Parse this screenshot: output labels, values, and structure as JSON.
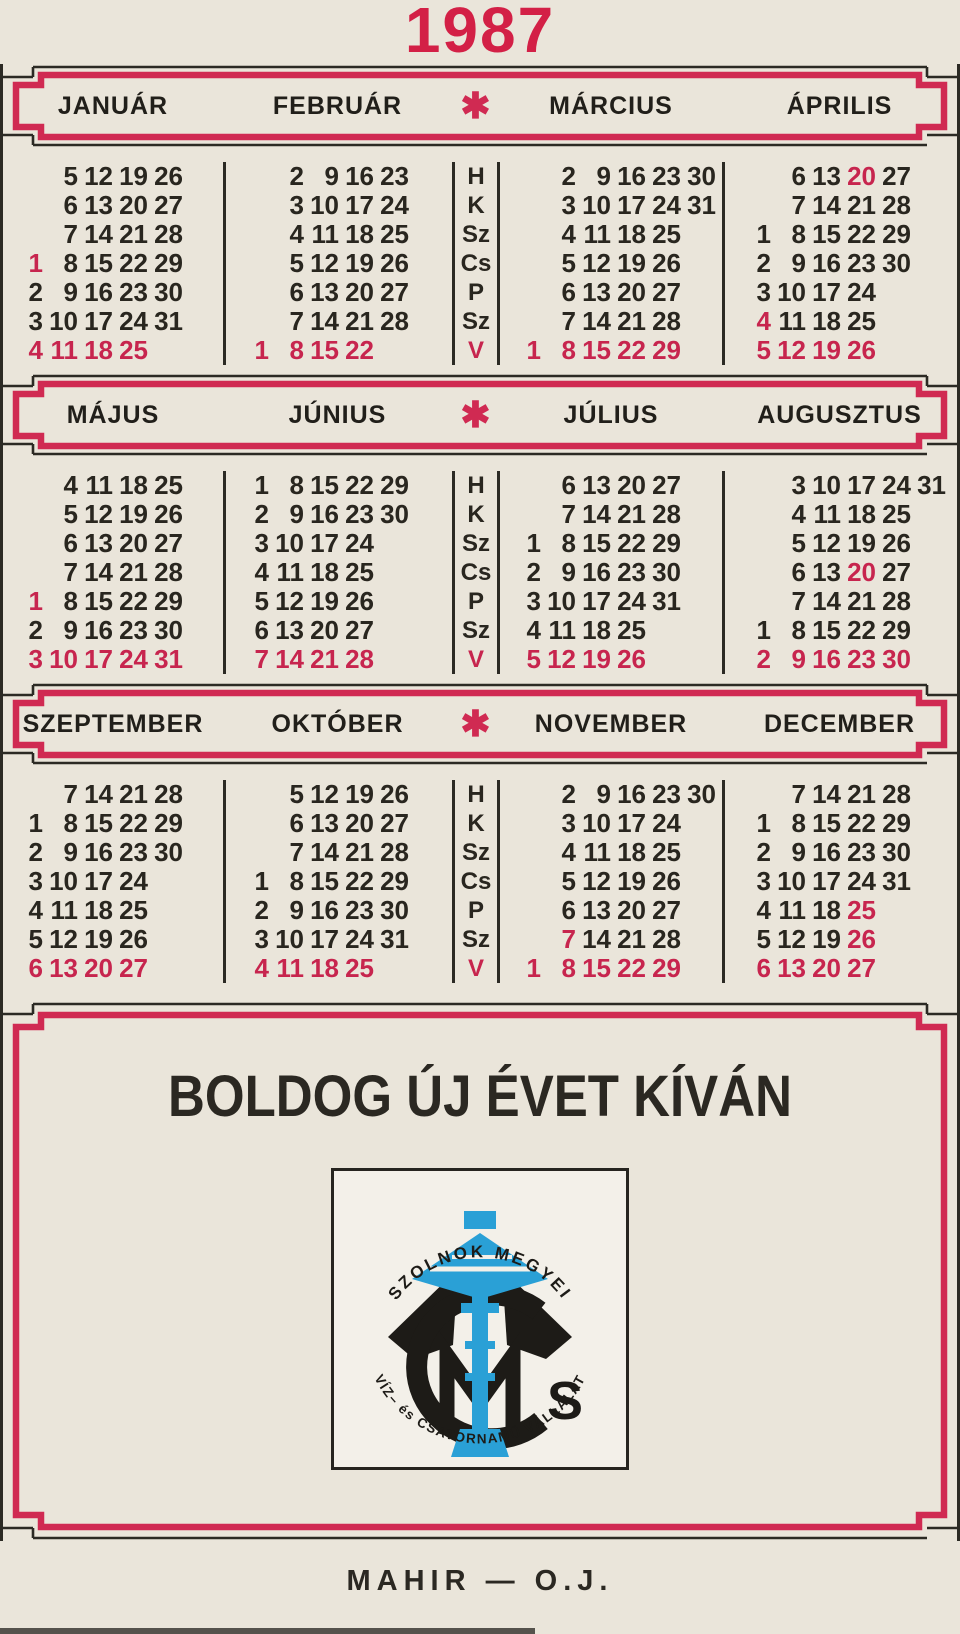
{
  "year_title": "1987",
  "star_separator": "✱",
  "weekday_letters": [
    "H",
    "K",
    "Sz",
    "Cs",
    "P",
    "Sz",
    "V"
  ],
  "colors": {
    "accent_red": "#c7254e",
    "frame_red": "#d02a52",
    "ink": "#29261f",
    "background": "#eae5da",
    "logo_blue": "#2aa0d6"
  },
  "sections": [
    {
      "months": [
        {
          "name": "JANUÁR",
          "red_days": [
            1
          ],
          "rows": [
            [
              "",
              "5",
              "12",
              "19",
              "26",
              ""
            ],
            [
              "",
              "6",
              "13",
              "20",
              "27",
              ""
            ],
            [
              "",
              "7",
              "14",
              "21",
              "28",
              ""
            ],
            [
              "1",
              "8",
              "15",
              "22",
              "29",
              ""
            ],
            [
              "2",
              "9",
              "16",
              "23",
              "30",
              ""
            ],
            [
              "3",
              "10",
              "17",
              "24",
              "31",
              ""
            ],
            [
              "4",
              "11",
              "18",
              "25",
              "",
              ""
            ]
          ]
        },
        {
          "name": "FEBRUÁR",
          "red_days": [],
          "rows": [
            [
              "",
              "2",
              "9",
              "16",
              "23",
              ""
            ],
            [
              "",
              "3",
              "10",
              "17",
              "24",
              ""
            ],
            [
              "",
              "4",
              "11",
              "18",
              "25",
              ""
            ],
            [
              "",
              "5",
              "12",
              "19",
              "26",
              ""
            ],
            [
              "",
              "6",
              "13",
              "20",
              "27",
              ""
            ],
            [
              "",
              "7",
              "14",
              "21",
              "28",
              ""
            ],
            [
              "1",
              "8",
              "15",
              "22",
              "",
              ""
            ]
          ]
        },
        {
          "name": "MÁRCIUS",
          "red_days": [],
          "rows": [
            [
              "",
              "2",
              "9",
              "16",
              "23",
              "30"
            ],
            [
              "",
              "3",
              "10",
              "17",
              "24",
              "31"
            ],
            [
              "",
              "4",
              "11",
              "18",
              "25",
              ""
            ],
            [
              "",
              "5",
              "12",
              "19",
              "26",
              ""
            ],
            [
              "",
              "6",
              "13",
              "20",
              "27",
              ""
            ],
            [
              "",
              "7",
              "14",
              "21",
              "28",
              ""
            ],
            [
              "1",
              "8",
              "15",
              "22",
              "29",
              ""
            ]
          ]
        },
        {
          "name": "ÁPRILIS",
          "red_days": [
            4,
            20
          ],
          "rows": [
            [
              "",
              "6",
              "13",
              "20",
              "27",
              ""
            ],
            [
              "",
              "7",
              "14",
              "21",
              "28",
              ""
            ],
            [
              "1",
              "8",
              "15",
              "22",
              "29",
              ""
            ],
            [
              "2",
              "9",
              "16",
              "23",
              "30",
              ""
            ],
            [
              "3",
              "10",
              "17",
              "24",
              "",
              ""
            ],
            [
              "4",
              "11",
              "18",
              "25",
              "",
              ""
            ],
            [
              "5",
              "12",
              "19",
              "26",
              "",
              ""
            ]
          ]
        }
      ]
    },
    {
      "months": [
        {
          "name": "MÁJUS",
          "red_days": [
            1
          ],
          "rows": [
            [
              "",
              "4",
              "11",
              "18",
              "25",
              ""
            ],
            [
              "",
              "5",
              "12",
              "19",
              "26",
              ""
            ],
            [
              "",
              "6",
              "13",
              "20",
              "27",
              ""
            ],
            [
              "",
              "7",
              "14",
              "21",
              "28",
              ""
            ],
            [
              "1",
              "8",
              "15",
              "22",
              "29",
              ""
            ],
            [
              "2",
              "9",
              "16",
              "23",
              "30",
              ""
            ],
            [
              "3",
              "10",
              "17",
              "24",
              "31",
              ""
            ]
          ]
        },
        {
          "name": "JÚNIUS",
          "red_days": [],
          "rows": [
            [
              "1",
              "8",
              "15",
              "22",
              "29",
              ""
            ],
            [
              "2",
              "9",
              "16",
              "23",
              "30",
              ""
            ],
            [
              "3",
              "10",
              "17",
              "24",
              "",
              ""
            ],
            [
              "4",
              "11",
              "18",
              "25",
              "",
              ""
            ],
            [
              "5",
              "12",
              "19",
              "26",
              "",
              ""
            ],
            [
              "6",
              "13",
              "20",
              "27",
              "",
              ""
            ],
            [
              "7",
              "14",
              "21",
              "28",
              "",
              ""
            ]
          ]
        },
        {
          "name": "JÚLIUS",
          "red_days": [],
          "rows": [
            [
              "",
              "6",
              "13",
              "20",
              "27",
              ""
            ],
            [
              "",
              "7",
              "14",
              "21",
              "28",
              ""
            ],
            [
              "1",
              "8",
              "15",
              "22",
              "29",
              ""
            ],
            [
              "2",
              "9",
              "16",
              "23",
              "30",
              ""
            ],
            [
              "3",
              "10",
              "17",
              "24",
              "31",
              ""
            ],
            [
              "4",
              "11",
              "18",
              "25",
              "",
              ""
            ],
            [
              "5",
              "12",
              "19",
              "26",
              "",
              ""
            ]
          ]
        },
        {
          "name": "AUGUSZTUS",
          "red_days": [
            20
          ],
          "rows": [
            [
              "",
              "3",
              "10",
              "17",
              "24",
              "31"
            ],
            [
              "",
              "4",
              "11",
              "18",
              "25",
              ""
            ],
            [
              "",
              "5",
              "12",
              "19",
              "26",
              ""
            ],
            [
              "",
              "6",
              "13",
              "20",
              "27",
              ""
            ],
            [
              "",
              "7",
              "14",
              "21",
              "28",
              ""
            ],
            [
              "1",
              "8",
              "15",
              "22",
              "29",
              ""
            ],
            [
              "2",
              "9",
              "16",
              "23",
              "30",
              ""
            ]
          ]
        }
      ]
    },
    {
      "months": [
        {
          "name": "SZEPTEMBER",
          "red_days": [],
          "rows": [
            [
              "",
              "7",
              "14",
              "21",
              "28",
              ""
            ],
            [
              "1",
              "8",
              "15",
              "22",
              "29",
              ""
            ],
            [
              "2",
              "9",
              "16",
              "23",
              "30",
              ""
            ],
            [
              "3",
              "10",
              "17",
              "24",
              "",
              ""
            ],
            [
              "4",
              "11",
              "18",
              "25",
              "",
              ""
            ],
            [
              "5",
              "12",
              "19",
              "26",
              "",
              ""
            ],
            [
              "6",
              "13",
              "20",
              "27",
              "",
              ""
            ]
          ]
        },
        {
          "name": "OKTÓBER",
          "red_days": [],
          "rows": [
            [
              "",
              "5",
              "12",
              "19",
              "26",
              ""
            ],
            [
              "",
              "6",
              "13",
              "20",
              "27",
              ""
            ],
            [
              "",
              "7",
              "14",
              "21",
              "28",
              ""
            ],
            [
              "1",
              "8",
              "15",
              "22",
              "29",
              ""
            ],
            [
              "2",
              "9",
              "16",
              "23",
              "30",
              ""
            ],
            [
              "3",
              "10",
              "17",
              "24",
              "31",
              ""
            ],
            [
              "4",
              "11",
              "18",
              "25",
              "",
              ""
            ]
          ]
        },
        {
          "name": "NOVEMBER",
          "red_days": [
            7
          ],
          "rows": [
            [
              "",
              "2",
              "9",
              "16",
              "23",
              "30"
            ],
            [
              "",
              "3",
              "10",
              "17",
              "24",
              ""
            ],
            [
              "",
              "4",
              "11",
              "18",
              "25",
              ""
            ],
            [
              "",
              "5",
              "12",
              "19",
              "26",
              ""
            ],
            [
              "",
              "6",
              "13",
              "20",
              "27",
              ""
            ],
            [
              "",
              "7",
              "14",
              "21",
              "28",
              ""
            ],
            [
              "1",
              "8",
              "15",
              "22",
              "29",
              ""
            ]
          ]
        },
        {
          "name": "DECEMBER",
          "red_days": [
            25,
            26
          ],
          "rows": [
            [
              "",
              "7",
              "14",
              "21",
              "28",
              ""
            ],
            [
              "1",
              "8",
              "15",
              "22",
              "29",
              ""
            ],
            [
              "2",
              "9",
              "16",
              "23",
              "30",
              ""
            ],
            [
              "3",
              "10",
              "17",
              "24",
              "31",
              ""
            ],
            [
              "4",
              "11",
              "18",
              "25",
              "",
              ""
            ],
            [
              "5",
              "12",
              "19",
              "26",
              "",
              ""
            ],
            [
              "6",
              "13",
              "20",
              "27",
              "",
              ""
            ]
          ]
        }
      ]
    }
  ],
  "greeting": "BOLDOG ÚJ ÉVET KÍVÁN",
  "logo": {
    "arc_top": "SZOLNOK MEGYEI",
    "arc_bottom": "VÍZ– és CSATORNAMŰ VÁLLALAT"
  },
  "footer": "MAHIR — O.J."
}
